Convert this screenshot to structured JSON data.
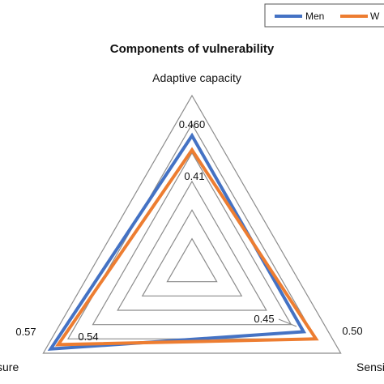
{
  "chart_data": {
    "type": "radar",
    "title": "Components of vulnerability",
    "axes": [
      "Adaptive capacity",
      "Sensitivity",
      "Exposure"
    ],
    "axis_labels_visible": [
      "Adaptive capacity",
      "Sensi",
      "sure"
    ],
    "scale_max": 0.6,
    "rings": [
      0.1,
      0.2,
      0.3,
      0.4,
      0.5,
      0.6
    ],
    "tick_labels": [
      "0.460"
    ],
    "grid": true,
    "legend_position": "top-right",
    "legend_visible_labels": [
      "Men",
      "W"
    ],
    "series": [
      {
        "name": "Men",
        "color": "#4472C4",
        "values": [
          0.46,
          0.45,
          0.57
        ],
        "value_labels": [
          "",
          "0.45",
          "0.57"
        ]
      },
      {
        "name": "Women",
        "color": "#ED7D31",
        "values": [
          0.41,
          0.5,
          0.54
        ],
        "value_labels": [
          "0.41",
          "0.50",
          "0.54"
        ]
      }
    ]
  }
}
